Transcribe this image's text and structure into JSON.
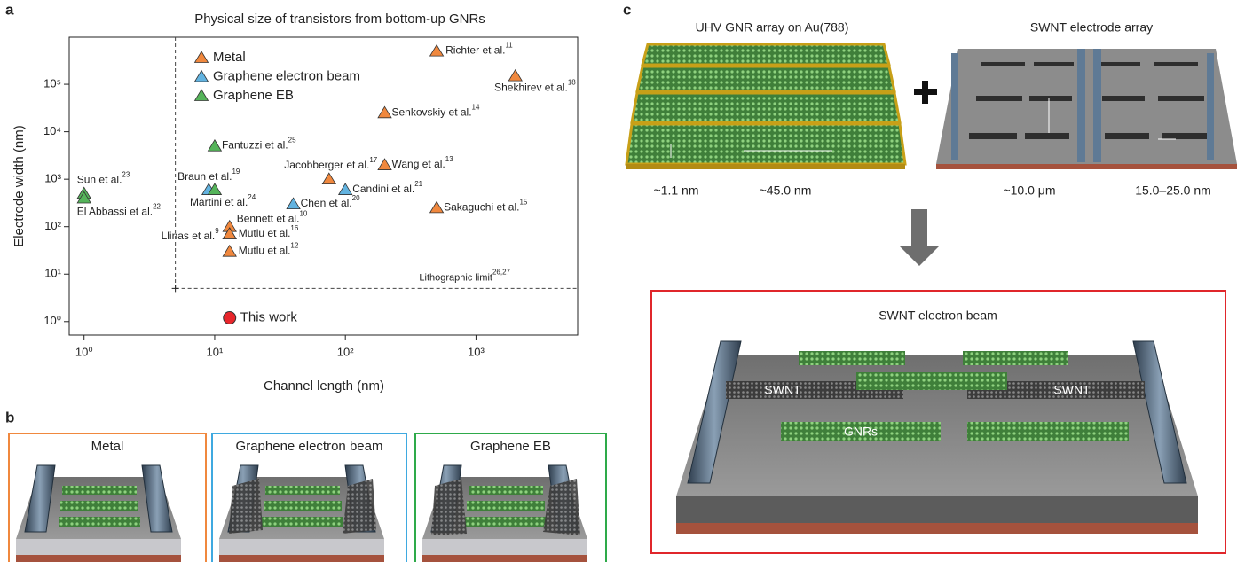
{
  "panel_labels": [
    "a",
    "b",
    "c"
  ],
  "chart_data": {
    "type": "scatter",
    "title": "Physical size of transistors from bottom-up GNRs",
    "x_label": "Channel length (nm)",
    "y_label": "Electrode width (nm)",
    "xscale": "log",
    "yscale": "log",
    "xlim": [
      0.77,
      6000
    ],
    "ylim": [
      0.52,
      980000
    ],
    "xticks": [
      {
        "value": 1,
        "label": "10⁰"
      },
      {
        "value": 10,
        "label": "10¹"
      },
      {
        "value": 100,
        "label": "10²"
      },
      {
        "value": 1000,
        "label": "10³"
      }
    ],
    "yticks": [
      {
        "value": 1,
        "label": "10⁰"
      },
      {
        "value": 10,
        "label": "10¹"
      },
      {
        "value": 100,
        "label": "10²"
      },
      {
        "value": 1000,
        "label": "10³"
      },
      {
        "value": 10000,
        "label": "10⁴"
      },
      {
        "value": 100000,
        "label": "10⁵"
      }
    ],
    "series": [
      {
        "name": "Metal",
        "color": "#f0883e",
        "x": [
          500,
          2000,
          200,
          200,
          75,
          500,
          13,
          13,
          13,
          13
        ],
        "values": [
          500000,
          150000,
          25000,
          2000,
          1000,
          250,
          100,
          70,
          70,
          30
        ],
        "labels": [
          "Richter et al.",
          "Shekhirev et al.",
          "Senkovskiy et al.",
          "Wang et al.",
          "Jacobberger et al.",
          "Sakaguchi et al.",
          "Bennett et al.",
          "Llinas et al.",
          "Mutlu et al.",
          "Mutlu et al."
        ],
        "refs": [
          "11",
          "18",
          "14",
          "13",
          "17",
          "15",
          "10",
          "9",
          "16",
          "12"
        ]
      },
      {
        "name": "Graphene electron beam",
        "color": "#62b3e0",
        "x": [
          9,
          40,
          100
        ],
        "values": [
          600,
          300,
          600
        ],
        "labels": [
          "Braun et al.",
          "Chen et al.",
          "Candini et al."
        ],
        "refs": [
          "19",
          "20",
          "21"
        ]
      },
      {
        "name": "Graphene EB",
        "color": "#55b45a",
        "x": [
          1,
          1,
          10,
          10
        ],
        "values": [
          500,
          400,
          5000,
          600
        ],
        "labels": [
          "Sun et al.",
          "El Abbassi et al.",
          "Fantuzzi et al.",
          "Martini et al."
        ],
        "refs": [
          "23",
          "22",
          "25",
          "24"
        ]
      }
    ],
    "this_work": {
      "name": "This work",
      "x": 13,
      "y": 1.2,
      "color": "#e8262b"
    },
    "limit": {
      "x": 5,
      "y": 5,
      "label": "Lithographic limit",
      "ref": "26,27"
    }
  },
  "panel_b": {
    "boxes": [
      {
        "title": "Metal",
        "color": "#f0883e"
      },
      {
        "title": "Graphene electron beam",
        "color": "#3fa9e0"
      },
      {
        "title": "Graphene EB",
        "color": "#2eaa4a"
      }
    ]
  },
  "panel_c": {
    "gnr_array": {
      "title": "UHV GNR array on Au(788)",
      "dims": [
        "~1.1 nm",
        "~45.0 nm"
      ]
    },
    "electrode_array": {
      "title": "SWNT electrode array",
      "dims": [
        "~10.0 μm",
        "15.0–25.0 nm"
      ]
    },
    "device": {
      "title": "SWNT electron beam",
      "border": "#e0262b",
      "labels": [
        "SWNT",
        "SWNT",
        "GNRs"
      ]
    }
  }
}
